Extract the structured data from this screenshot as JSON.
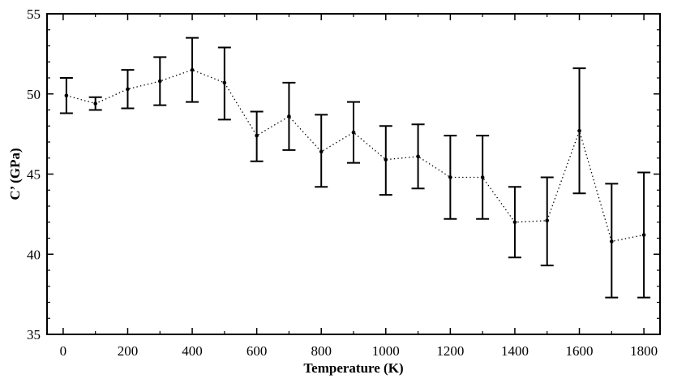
{
  "chart_data": {
    "type": "line",
    "title": "",
    "xlabel": "Temperature (K)",
    "ylabel": "C’ (GPa)",
    "xlim": [
      -50,
      1850
    ],
    "ylim": [
      35,
      55
    ],
    "xticks": [
      0,
      200,
      400,
      600,
      800,
      1000,
      1200,
      1400,
      1600,
      1800
    ],
    "xtick_labels": [
      "0",
      "200",
      "400",
      "600",
      "800",
      "1000",
      "1200",
      "1400",
      "1600",
      "1800"
    ],
    "yticks": [
      35,
      40,
      45,
      50,
      55
    ],
    "ytick_labels": [
      "35",
      "40",
      "45",
      "50",
      "55"
    ],
    "grid": false,
    "line_style": "dotted",
    "marker": "circle",
    "series": [
      {
        "x": [
          10,
          100,
          200,
          300,
          400,
          500,
          600,
          700,
          800,
          900,
          1000,
          1100,
          1200,
          1300,
          1400,
          1500,
          1600,
          1700,
          1800
        ],
        "y": [
          49.9,
          49.4,
          50.3,
          50.8,
          51.5,
          50.7,
          47.4,
          48.6,
          46.4,
          47.6,
          45.9,
          46.1,
          44.8,
          44.8,
          42.0,
          42.1,
          47.7,
          40.8,
          41.2
        ],
        "y_err_low": [
          48.8,
          49.0,
          49.1,
          49.3,
          49.5,
          48.4,
          45.8,
          46.5,
          44.2,
          45.7,
          43.7,
          44.1,
          42.2,
          42.2,
          39.8,
          39.3,
          43.8,
          37.3,
          37.3
        ],
        "y_err_high": [
          51.0,
          49.8,
          51.5,
          52.3,
          53.5,
          52.9,
          48.9,
          50.7,
          48.7,
          49.5,
          48.0,
          48.1,
          47.4,
          47.4,
          44.2,
          44.8,
          51.6,
          44.4,
          45.1
        ]
      }
    ]
  },
  "style": {
    "line_color": "#000000",
    "background": "#ffffff"
  }
}
